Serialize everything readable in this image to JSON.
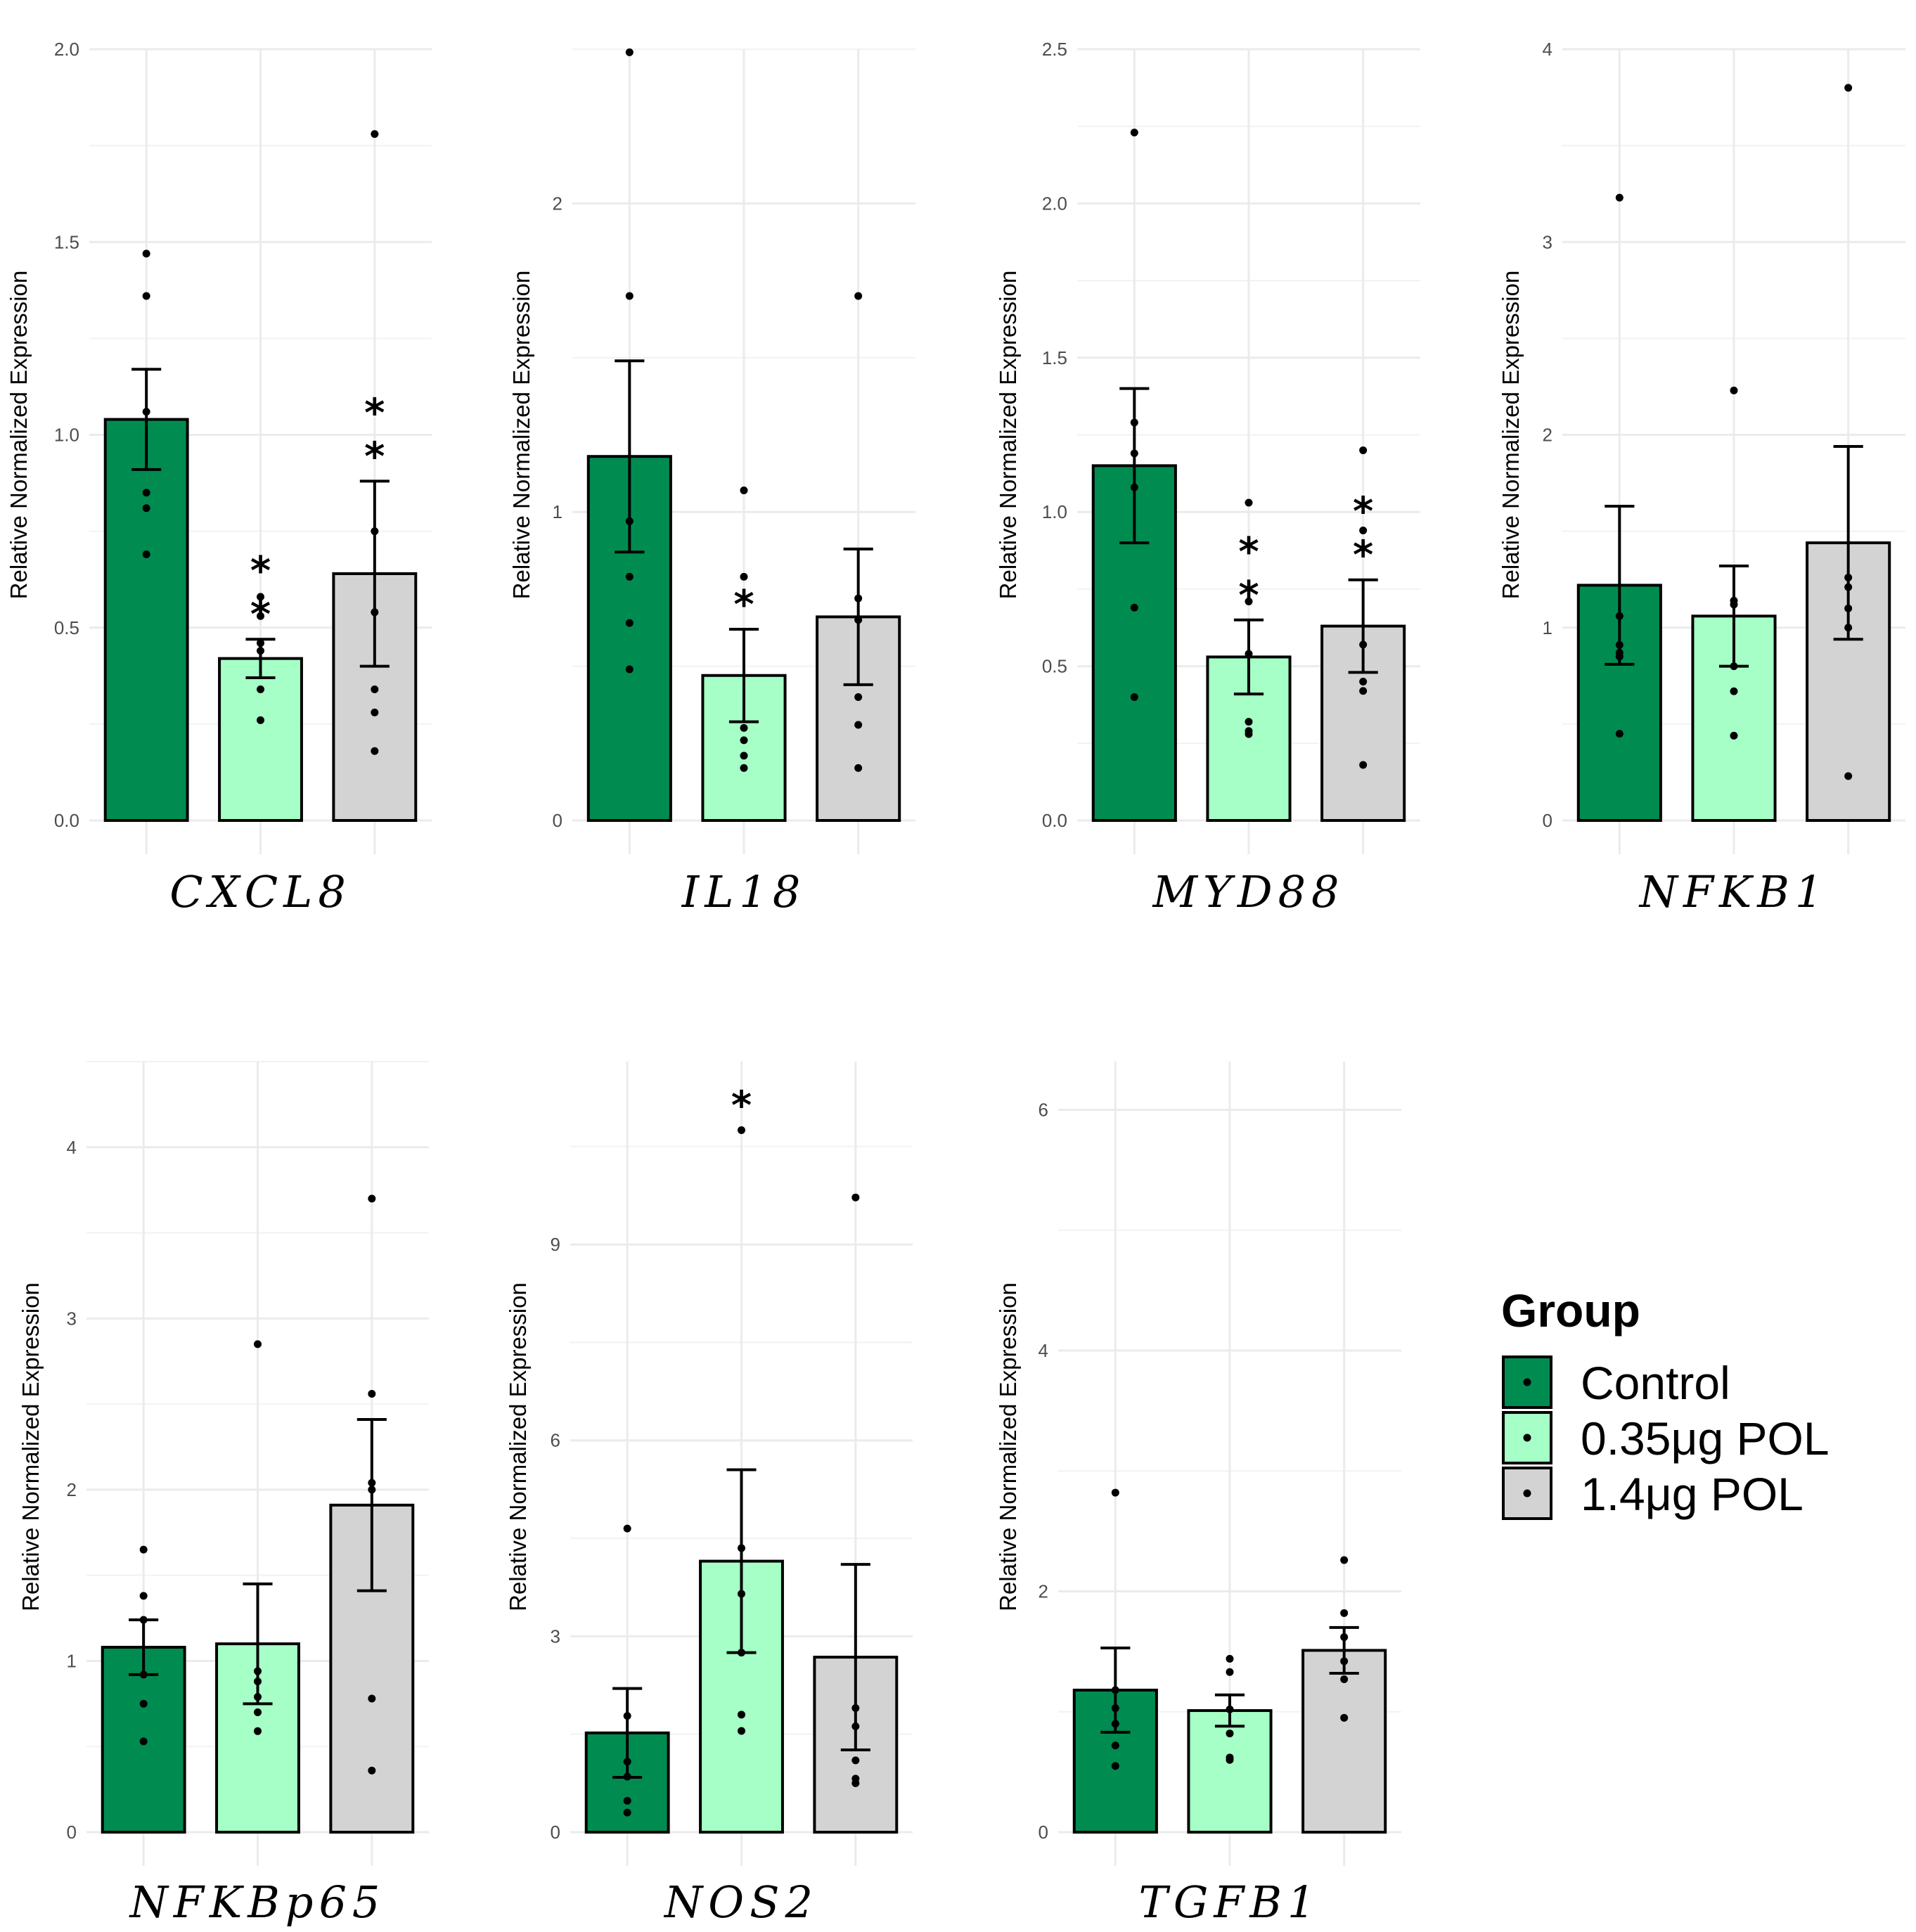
{
  "y_title": "Relative Normalized Expression",
  "groups": [
    {
      "name": "Control",
      "color": "#008c50"
    },
    {
      "name": "0.35μg POL",
      "color": "#a6ffc6"
    },
    {
      "name": "1.4μg POL",
      "color": "#d3d3d3"
    }
  ],
  "legend": {
    "title": "Group",
    "position": "right"
  },
  "chart_data": [
    {
      "type": "bar",
      "gene": "CXCL8",
      "ylim": [
        0,
        2.0
      ],
      "yticks": [
        "0.0",
        "0.5",
        "1.0",
        "1.5",
        "2.0"
      ],
      "means": [
        1.04,
        0.42,
        0.64
      ],
      "errors": [
        0.13,
        0.05,
        0.24
      ],
      "points": [
        [
          1.47,
          1.36,
          1.06,
          0.85,
          0.81,
          0.69
        ],
        [
          0.58,
          0.53,
          0.46,
          0.44,
          0.34,
          0.26
        ],
        [
          1.78,
          0.75,
          0.54,
          0.34,
          0.28,
          0.18
        ]
      ],
      "sig": [
        "",
        "**",
        "**"
      ]
    },
    {
      "type": "bar",
      "gene": "IL18",
      "ylim": [
        0,
        2.5
      ],
      "yticks": [
        "0",
        "1",
        "2"
      ],
      "means": [
        1.18,
        0.47,
        0.66
      ],
      "errors": [
        0.31,
        0.15,
        0.22
      ],
      "points": [
        [
          2.49,
          1.7,
          0.97,
          0.79,
          0.64,
          0.49
        ],
        [
          1.07,
          0.79,
          0.3,
          0.26,
          0.21,
          0.17
        ],
        [
          1.7,
          0.72,
          0.65,
          0.4,
          0.31,
          0.17
        ]
      ],
      "sig": [
        "",
        "*",
        ""
      ]
    },
    {
      "type": "bar",
      "gene": "MYD88",
      "ylim": [
        0,
        2.5
      ],
      "yticks": [
        "0.0",
        "0.5",
        "1.0",
        "1.5",
        "2.0",
        "2.5"
      ],
      "means": [
        1.15,
        0.53,
        0.63
      ],
      "errors": [
        0.25,
        0.12,
        0.15
      ],
      "points": [
        [
          2.23,
          1.29,
          1.19,
          1.08,
          0.69,
          0.4
        ],
        [
          1.03,
          0.71,
          0.54,
          0.32,
          0.29,
          0.28
        ],
        [
          1.2,
          0.94,
          0.57,
          0.45,
          0.42,
          0.18
        ]
      ],
      "sig": [
        "",
        "**",
        "**"
      ]
    },
    {
      "type": "bar",
      "gene": "NFKB1",
      "ylim": [
        0,
        4
      ],
      "yticks": [
        "0",
        "1",
        "2",
        "3",
        "4"
      ],
      "means": [
        1.22,
        1.06,
        1.44
      ],
      "errors": [
        0.41,
        0.26,
        0.5
      ],
      "points": [
        [
          3.23,
          1.06,
          0.91,
          0.87,
          0.85,
          0.45
        ],
        [
          2.23,
          1.14,
          1.12,
          0.8,
          0.67,
          0.44
        ],
        [
          3.8,
          1.26,
          1.21,
          1.1,
          1.0,
          0.23
        ]
      ],
      "sig": [
        "",
        "",
        ""
      ]
    },
    {
      "type": "bar",
      "gene": "NFKBp65",
      "ylim": [
        0,
        4.5
      ],
      "yticks": [
        "0",
        "1",
        "2",
        "3",
        "4"
      ],
      "means": [
        1.08,
        1.1,
        1.91
      ],
      "errors": [
        0.16,
        0.35,
        0.5
      ],
      "points": [
        [
          1.65,
          1.38,
          1.24,
          0.92,
          0.75,
          0.53
        ],
        [
          2.85,
          0.94,
          0.88,
          0.79,
          0.7,
          0.59
        ],
        [
          3.7,
          2.56,
          2.04,
          2.0,
          0.78,
          0.36
        ]
      ],
      "sig": [
        "",
        "",
        ""
      ]
    },
    {
      "type": "bar",
      "gene": "NOS2",
      "ylim": [
        0,
        11.8
      ],
      "yticks": [
        "0",
        "3",
        "6",
        "9"
      ],
      "means": [
        1.52,
        4.15,
        2.68
      ],
      "errors": [
        0.68,
        1.4,
        1.42
      ],
      "points": [
        [
          4.65,
          1.78,
          1.08,
          0.85,
          0.48,
          0.3
        ],
        [
          10.75,
          4.35,
          3.65,
          2.75,
          1.8,
          1.55
        ],
        [
          9.72,
          1.9,
          1.62,
          1.1,
          0.82,
          0.75
        ]
      ],
      "sig": [
        "",
        "*",
        ""
      ]
    },
    {
      "type": "bar",
      "gene": "TGFB1",
      "ylim": [
        0,
        6.4
      ],
      "yticks": [
        "0",
        "2",
        "4",
        "6"
      ],
      "means": [
        1.18,
        1.01,
        1.51
      ],
      "errors": [
        0.35,
        0.13,
        0.19
      ],
      "points": [
        [
          2.82,
          1.18,
          1.03,
          0.9,
          0.72,
          0.55
        ],
        [
          1.44,
          1.33,
          1.02,
          0.82,
          0.62,
          0.6
        ],
        [
          2.26,
          1.82,
          1.62,
          1.42,
          1.27,
          0.95
        ]
      ],
      "sig": [
        "",
        "",
        ""
      ]
    }
  ]
}
